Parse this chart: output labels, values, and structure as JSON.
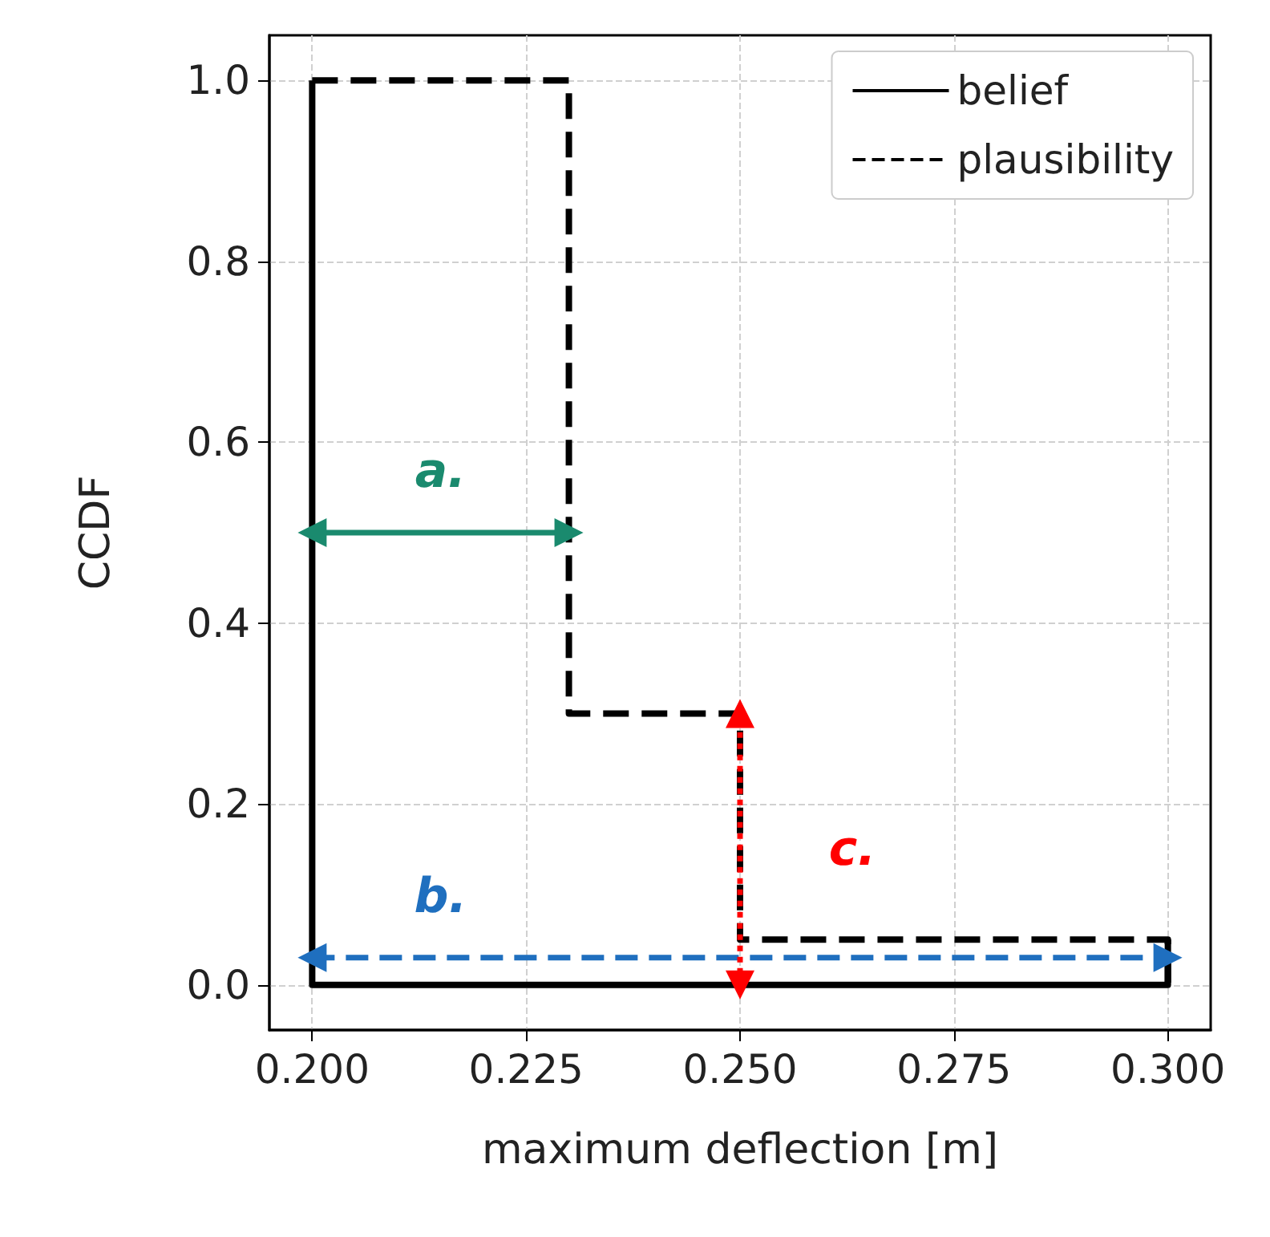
{
  "chart_data": {
    "type": "line",
    "xlabel": "maximum deflection [m]",
    "ylabel": "CCDF",
    "xlim": [
      0.195,
      0.305
    ],
    "ylim": [
      -0.05,
      1.05
    ],
    "xticks": [
      {
        "value": 0.2,
        "label": "0.200"
      },
      {
        "value": 0.225,
        "label": "0.225"
      },
      {
        "value": 0.25,
        "label": "0.250"
      },
      {
        "value": 0.275,
        "label": "0.275"
      },
      {
        "value": 0.3,
        "label": "0.300"
      }
    ],
    "yticks": [
      {
        "value": 0,
        "label": "0.0"
      },
      {
        "value": 0.2,
        "label": "0.2"
      },
      {
        "value": 0.4,
        "label": "0.4"
      },
      {
        "value": 0.6,
        "label": "0.6"
      },
      {
        "value": 0.8,
        "label": "0.8"
      },
      {
        "value": 1,
        "label": "1.0"
      }
    ],
    "grid": true,
    "legend": "top right",
    "series": [
      {
        "name": "belief",
        "color": "#000000",
        "line_style": "solid",
        "x": [
          0.2,
          0.2,
          0.3,
          0.3
        ],
        "values": [
          1,
          0,
          0,
          0.05
        ]
      },
      {
        "name": "plausibility",
        "color": "#000000",
        "line_style": "dashed",
        "x": [
          0.2,
          0.23,
          0.23,
          0.25,
          0.25,
          0.3,
          0.3
        ],
        "values": [
          1,
          1,
          0.3,
          0.3,
          0.05,
          0.05,
          0
        ]
      },
      {
        "color": "#1a8a6e",
        "line_style": "solid",
        "marker": "triangle",
        "x": [
          0.2,
          0.23
        ],
        "values": [
          0.5,
          0.5
        ]
      },
      {
        "color": "#1f6fbf",
        "line_style": "dashed",
        "marker": "triangle",
        "x": [
          0.2,
          0.3
        ],
        "values": [
          0.03,
          0.03
        ]
      },
      {
        "color": "#ff0000",
        "line_style": "dotted",
        "marker": "triangle",
        "x": [
          0.25,
          0.25
        ],
        "values": [
          0,
          0.3
        ]
      }
    ],
    "annotations": [
      "a.",
      "b.",
      "c."
    ]
  }
}
